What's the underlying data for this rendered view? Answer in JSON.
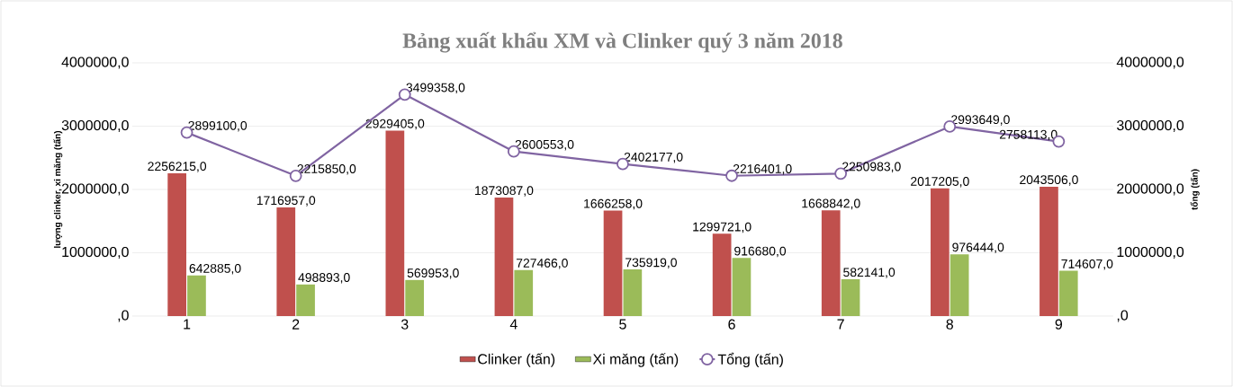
{
  "chart_data": {
    "type": "bar",
    "title": "Bảng xuất khẩu XM và Clinker quý 3 năm 2018",
    "ylabel": "lượng clinker, xi măng (tấn)",
    "y2label": "tổng (tấn)",
    "categories": [
      "1",
      "2",
      "3",
      "4",
      "5",
      "6",
      "7",
      "8",
      "9"
    ],
    "series": [
      {
        "name": "Clinker (tấn)",
        "color": "#c0504d",
        "values": [
          2256215,
          1716957,
          2929405,
          1873087,
          1666258,
          1299721,
          1668842,
          2017205,
          2043506
        ],
        "value_labels": [
          "2256215,0",
          "1716957,0",
          "2929405,0",
          "1873087,0",
          "1666258,0",
          "1299721,0",
          "1668842,0",
          "2017205,0",
          "2043506,0"
        ]
      },
      {
        "name": "Xi măng (tấn)",
        "color": "#9bbb59",
        "values": [
          642885,
          498893,
          569953,
          727466,
          735919,
          916680,
          582141,
          976444,
          714607
        ],
        "value_labels": [
          "642885,0",
          "498893,0",
          "569953,0",
          "727466,0",
          "735919,0",
          "916680,0",
          "582141,0",
          "976444,0",
          "714607,0"
        ]
      },
      {
        "name": "Tổng (tấn)",
        "type": "line",
        "axis": "y2",
        "marker": "circle",
        "color": "#8064a2",
        "values": [
          2899100,
          2215850,
          3499358,
          2600553,
          2402177,
          2216401,
          2250983,
          2993649,
          2758113
        ],
        "value_labels": [
          "2899100,0",
          "2215850,0",
          "3499358,0",
          "2600553,0",
          "2402177,0",
          "2216401,0",
          "2250983,0",
          "2993649,0",
          "2758113,0"
        ]
      }
    ],
    "ylim": [
      0,
      4000000
    ],
    "yticks": [
      {
        "value": 0,
        "label": ",0"
      },
      {
        "value": 1000000,
        "label": "1000000,0"
      },
      {
        "value": 2000000,
        "label": "2000000,0"
      },
      {
        "value": 3000000,
        "label": "3000000,0"
      },
      {
        "value": 4000000,
        "label": "4000000,0"
      }
    ],
    "y2lim": [
      0,
      4000000
    ],
    "y2ticks": [
      {
        "value": 0,
        "label": ",0"
      },
      {
        "value": 1000000,
        "label": "1000000,0"
      },
      {
        "value": 2000000,
        "label": "2000000,0"
      },
      {
        "value": 3000000,
        "label": "3000000,0"
      },
      {
        "value": 4000000,
        "label": "4000000,0"
      }
    ],
    "grid": "y",
    "legend": "bottom"
  }
}
